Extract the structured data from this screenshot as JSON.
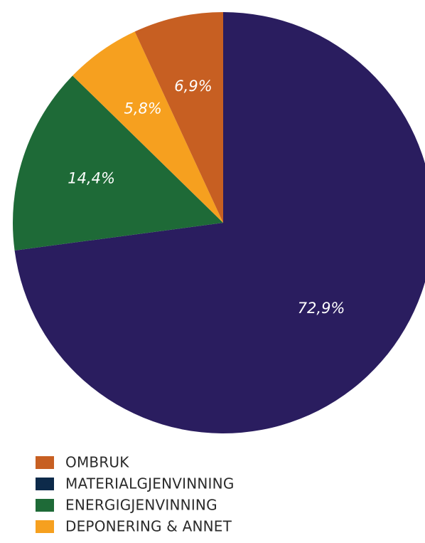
{
  "chart_data": {
    "type": "pie",
    "title": "",
    "slices": [
      {
        "name": "MATERIALGJENVINNING",
        "value": 72.9,
        "label": "72,9%",
        "color": "#2a1d5f"
      },
      {
        "name": "ENERGIGJENVINNING",
        "value": 14.4,
        "label": "14,4%",
        "color": "#1e6a37"
      },
      {
        "name": "DEPONERING & ANNET",
        "value": 5.8,
        "label": "5,8%",
        "color": "#f6a01f"
      },
      {
        "name": "OMBRUK",
        "value": 6.9,
        "label": "6,9%",
        "color": "#c75f22"
      }
    ],
    "legend": {
      "position": "bottom-left",
      "entries": [
        {
          "label": "OMBRUK",
          "color": "#c75f22"
        },
        {
          "label": "MATERIALGJENVINNING",
          "color": "#0d2a4a"
        },
        {
          "label": "ENERGIGJENVINNING",
          "color": "#1e6a37"
        },
        {
          "label": "DEPONERING & ANNET",
          "color": "#f6a01f"
        }
      ]
    }
  }
}
